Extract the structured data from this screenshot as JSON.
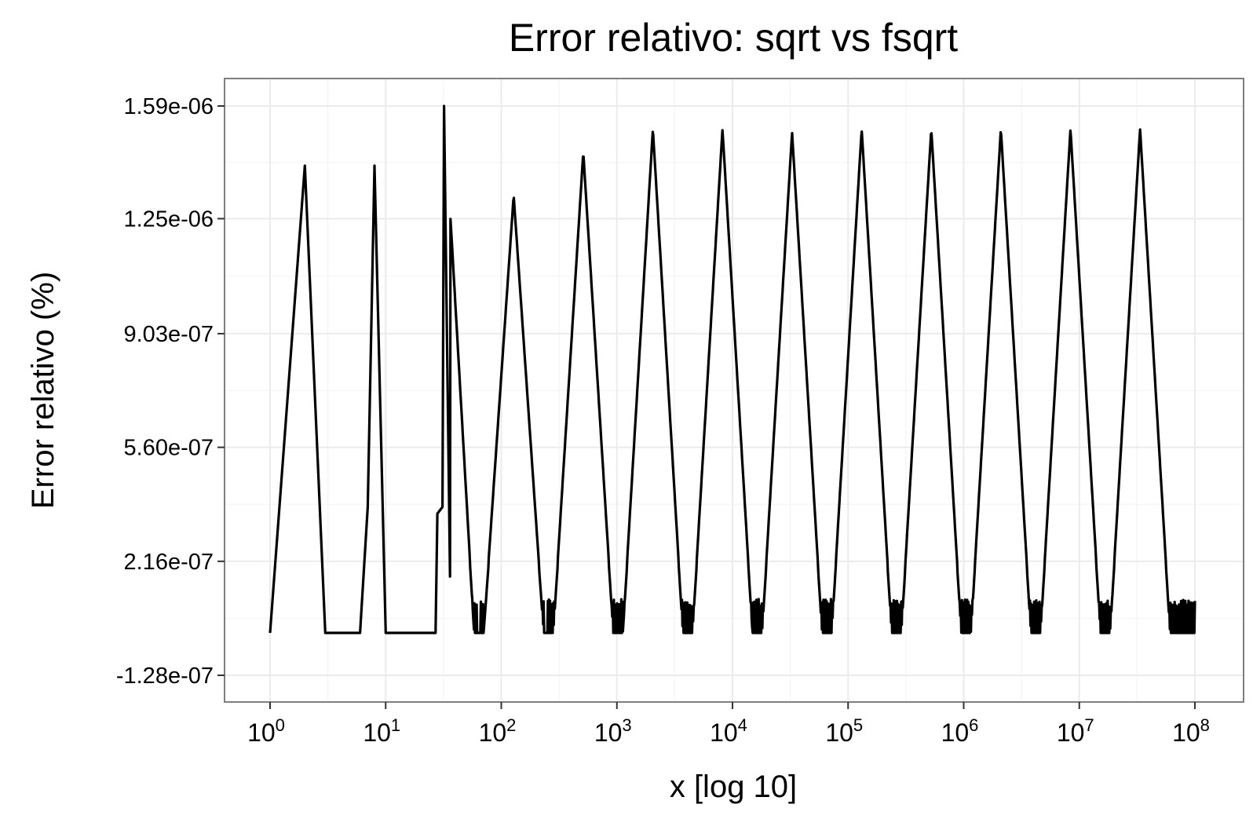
{
  "chart_data": {
    "type": "line",
    "title": "Error relativo: sqrt vs fsqrt",
    "xlabel": "x [log 10]",
    "ylabel": "Error relativo (%)",
    "x_scale": "log10",
    "xlim": [
      1,
      100000000
    ],
    "ylim": [
      -1.28e-07,
      1.59e-06
    ],
    "x_ticks": [
      {
        "value": 1,
        "base": "10",
        "exp": "0"
      },
      {
        "value": 10,
        "base": "10",
        "exp": "1"
      },
      {
        "value": 100,
        "base": "10",
        "exp": "2"
      },
      {
        "value": 1000,
        "base": "10",
        "exp": "3"
      },
      {
        "value": 10000,
        "base": "10",
        "exp": "4"
      },
      {
        "value": 100000,
        "base": "10",
        "exp": "5"
      },
      {
        "value": 1000000,
        "base": "10",
        "exp": "6"
      },
      {
        "value": 10000000,
        "base": "10",
        "exp": "7"
      },
      {
        "value": 100000000,
        "base": "10",
        "exp": "8"
      }
    ],
    "y_ticks": [
      {
        "value": -1.28e-07,
        "label": "-1.28e-07"
      },
      {
        "value": 2.16e-07,
        "label": "2.16e-07"
      },
      {
        "value": 5.6e-07,
        "label": "5.60e-07"
      },
      {
        "value": 9.03e-07,
        "label": "9.03e-07"
      },
      {
        "value": 1.25e-06,
        "label": "1.25e-06"
      },
      {
        "value": 1.59e-06,
        "label": "1.59e-06"
      }
    ],
    "grid": true,
    "color": "#000000",
    "baseline": 0,
    "peaks": [
      {
        "x": 2,
        "y": 1.41e-06
      },
      {
        "x": 8,
        "y": 1.41e-06
      },
      {
        "x": 32,
        "y": 1.59e-06
      },
      {
        "x": 128,
        "y": 1.32e-06
      },
      {
        "x": 512,
        "y": 1.45e-06
      },
      {
        "x": 2048,
        "y": 1.52e-06
      },
      {
        "x": 8192,
        "y": 1.52e-06
      },
      {
        "x": 32768,
        "y": 1.51e-06
      },
      {
        "x": 131072,
        "y": 1.52e-06
      },
      {
        "x": 524288,
        "y": 1.52e-06
      },
      {
        "x": 2097152,
        "y": 1.52e-06
      },
      {
        "x": 8388608,
        "y": 1.52e-06
      },
      {
        "x": 33554432,
        "y": 1.52e-06
      }
    ],
    "noise_min": -1.28e-07,
    "noise_max": 1.02e-07
  }
}
